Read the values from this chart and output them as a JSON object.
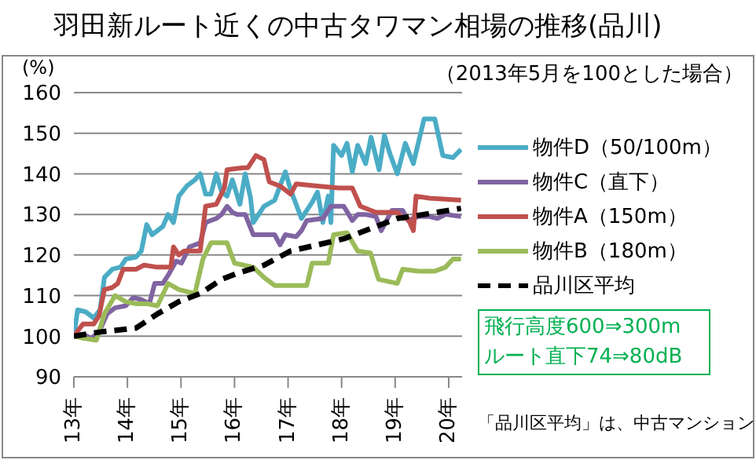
{
  "chart_data": {
    "type": "line",
    "title": "羽田新ルート近くの中古タワマン相場の推移(品川)",
    "subtitle": "（2013年5月を100とした場合）",
    "ylabel": "(%)",
    "annotations": [
      "飛行高度600⇒300m",
      "ルート直下74⇒80dB",
      "「品川区平均」は、中古マンション"
    ],
    "xlim": [
      13,
      20.25
    ],
    "xticks": [
      {
        "value": 13,
        "label": "13年"
      },
      {
        "value": 14,
        "label": "14年"
      },
      {
        "value": 15,
        "label": "15年"
      },
      {
        "value": 16,
        "label": "16年"
      },
      {
        "value": 17,
        "label": "17年"
      },
      {
        "value": 18,
        "label": "18年"
      },
      {
        "value": 19,
        "label": "19年"
      },
      {
        "value": 20,
        "label": "20年"
      }
    ],
    "ylim": [
      90,
      160
    ],
    "yticks": [
      90,
      100,
      110,
      120,
      130,
      140,
      150,
      160
    ],
    "grid": "y",
    "legend": "right",
    "marker": "none",
    "series": [
      {
        "name": "物件D（50/100m）",
        "color": "#4bacc6",
        "x": [
          13.0,
          13.07,
          13.22,
          13.37,
          13.49,
          13.57,
          13.72,
          13.87,
          13.97,
          14.16,
          14.26,
          14.36,
          14.46,
          14.66,
          14.76,
          14.86,
          14.96,
          15.11,
          15.26,
          15.36,
          15.46,
          15.56,
          15.66,
          15.76,
          15.86,
          15.96,
          16.1,
          16.2,
          16.3,
          16.35,
          16.55,
          16.75,
          16.95,
          17.05,
          17.25,
          17.45,
          17.55,
          17.65,
          17.75,
          17.8,
          17.85,
          18.0,
          18.1,
          18.2,
          18.3,
          18.45,
          18.55,
          18.7,
          18.8,
          18.9,
          19.04,
          19.19,
          19.34,
          19.54,
          19.74,
          19.89,
          20.08,
          20.23
        ],
        "values": [
          100,
          106.5,
          106,
          104.5,
          106.5,
          114.5,
          116.5,
          117,
          119,
          119.5,
          121,
          127.5,
          125,
          127,
          130,
          128,
          134.5,
          137,
          138.5,
          140,
          135,
          135,
          140,
          135.5,
          134.5,
          138.5,
          132.5,
          140,
          134,
          128,
          132,
          133.5,
          140.5,
          136,
          129,
          133,
          135.5,
          128,
          134.5,
          128,
          147,
          144.5,
          147.5,
          140.5,
          147,
          142.5,
          149,
          141,
          149.5,
          145,
          140,
          147.5,
          142.5,
          153.5,
          153.5,
          144.5,
          144,
          146
        ]
      },
      {
        "name": "物件C（直下）",
        "color": "#8064a2",
        "x": [
          13.0,
          13.17,
          13.32,
          13.47,
          13.62,
          13.77,
          13.97,
          14.11,
          14.26,
          14.41,
          14.51,
          14.66,
          14.76,
          14.91,
          15.01,
          15.16,
          15.36,
          15.46,
          15.66,
          15.76,
          15.86,
          15.96,
          16.05,
          16.2,
          16.35,
          16.75,
          16.85,
          16.95,
          17.15,
          17.25,
          17.35,
          17.65,
          17.8,
          18.04,
          18.2,
          18.3,
          18.44,
          18.64,
          18.74,
          18.94,
          19.14,
          19.24,
          19.44,
          19.64,
          19.79,
          19.94,
          20.23
        ],
        "values": [
          100,
          100.5,
          99.5,
          101,
          105.5,
          107,
          107.5,
          109.5,
          109,
          108,
          113,
          113,
          115,
          118.5,
          118,
          122,
          123,
          128,
          129,
          130,
          132,
          130.5,
          130,
          130,
          125,
          125,
          122.5,
          125,
          124.5,
          126,
          128.5,
          129,
          132,
          132,
          128.5,
          130,
          130,
          129.5,
          126,
          131,
          131,
          128.5,
          129.5,
          129.5,
          129,
          130,
          129.5
        ]
      },
      {
        "name": "物件A（150m）",
        "color": "#c0504d",
        "x": [
          13.0,
          13.17,
          13.37,
          13.47,
          13.57,
          13.72,
          13.82,
          13.92,
          14.16,
          14.31,
          14.56,
          14.81,
          14.86,
          14.96,
          15.06,
          15.36,
          15.46,
          15.66,
          15.81,
          15.86,
          16.15,
          16.25,
          16.4,
          16.55,
          16.65,
          16.85,
          17.05,
          17.15,
          17.55,
          17.95,
          18.2,
          18.35,
          18.64,
          19.04,
          19.14,
          19.24,
          19.34,
          19.39,
          19.64,
          20.23
        ],
        "values": [
          100,
          103,
          103,
          105,
          111.5,
          112,
          113,
          116.5,
          116.5,
          117.5,
          117,
          117,
          122,
          120,
          121,
          121,
          132,
          132.5,
          136.5,
          141,
          141.5,
          141.5,
          144.5,
          143.5,
          138,
          137,
          135,
          137.5,
          137,
          136.5,
          136.5,
          132,
          130.5,
          130.5,
          129,
          129,
          126,
          134.5,
          134,
          133.5
        ]
      },
      {
        "name": "物件B（180m）",
        "color": "#9bbb59",
        "x": [
          13.0,
          13.17,
          13.42,
          13.57,
          13.77,
          13.97,
          14.16,
          14.36,
          14.56,
          14.76,
          14.96,
          15.26,
          15.41,
          15.56,
          15.86,
          16.0,
          16.35,
          16.55,
          16.75,
          17.35,
          17.45,
          17.75,
          17.85,
          18.1,
          18.3,
          18.54,
          18.69,
          19.04,
          19.14,
          19.44,
          19.74,
          19.94,
          20.08,
          20.23
        ],
        "values": [
          100,
          99.5,
          99,
          105.5,
          110,
          108.5,
          108,
          108,
          107.5,
          113,
          111.5,
          110.5,
          119,
          123,
          123,
          118,
          117,
          114.5,
          112.5,
          112.5,
          118,
          118,
          125,
          125.5,
          121,
          120.5,
          114,
          113,
          116.5,
          116,
          116,
          117,
          119,
          119
        ]
      },
      {
        "name": "品川区平均",
        "color": "#000000",
        "line_style": "dashed",
        "x": [
          13.0,
          13.47,
          13.82,
          14.16,
          14.56,
          14.96,
          15.36,
          15.76,
          16.05,
          16.55,
          17.05,
          17.55,
          18.04,
          18.54,
          19.04,
          19.54,
          20.23
        ],
        "values": [
          100,
          101,
          101.5,
          102,
          105.5,
          108.5,
          110.5,
          114,
          115.5,
          117.5,
          121,
          122.5,
          124,
          126.5,
          129,
          130,
          131.5
        ]
      }
    ]
  }
}
